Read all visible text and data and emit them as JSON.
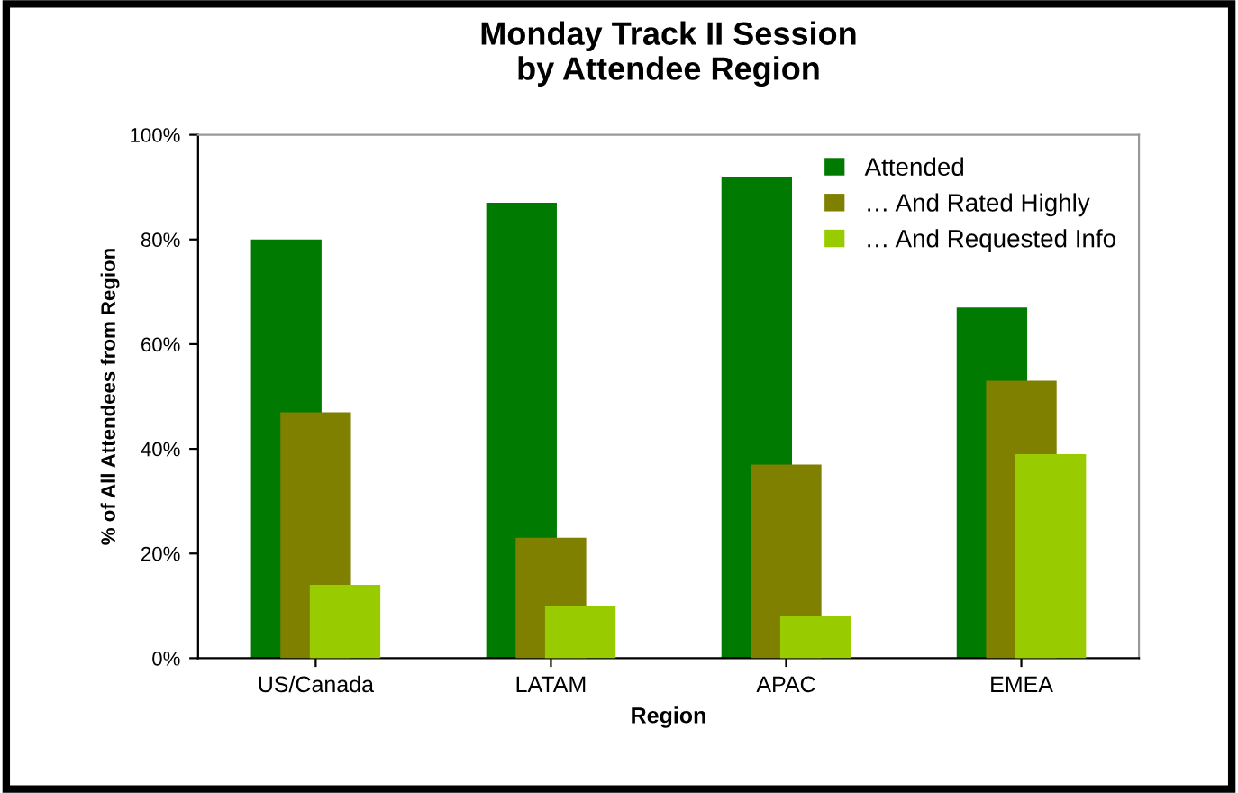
{
  "chart_data": {
    "type": "bar",
    "title": "Monday Track II Session\nby Attendee Region",
    "xlabel": "Region",
    "ylabel": "% of All Attendees from Region",
    "categories": [
      "US/Canada",
      "LATAM",
      "APAC",
      "EMEA"
    ],
    "series": [
      {
        "name": "Attended",
        "color": "#007a00",
        "values": [
          80,
          87,
          92,
          67
        ]
      },
      {
        "name": "… And Rated Highly",
        "color": "#7f7f00",
        "values": [
          47,
          23,
          37,
          53
        ]
      },
      {
        "name": "… And Requested Info",
        "color": "#99cc00",
        "values": [
          14,
          10,
          8,
          39
        ]
      }
    ],
    "ylim": [
      0,
      100
    ],
    "yticks": [
      {
        "value": 0,
        "label": "0%"
      },
      {
        "value": 20,
        "label": "20%"
      },
      {
        "value": 40,
        "label": "40%"
      },
      {
        "value": 60,
        "label": "60%"
      },
      {
        "value": 80,
        "label": "80%"
      },
      {
        "value": 100,
        "label": "100%"
      }
    ],
    "legend": "top right",
    "grid": false
  }
}
